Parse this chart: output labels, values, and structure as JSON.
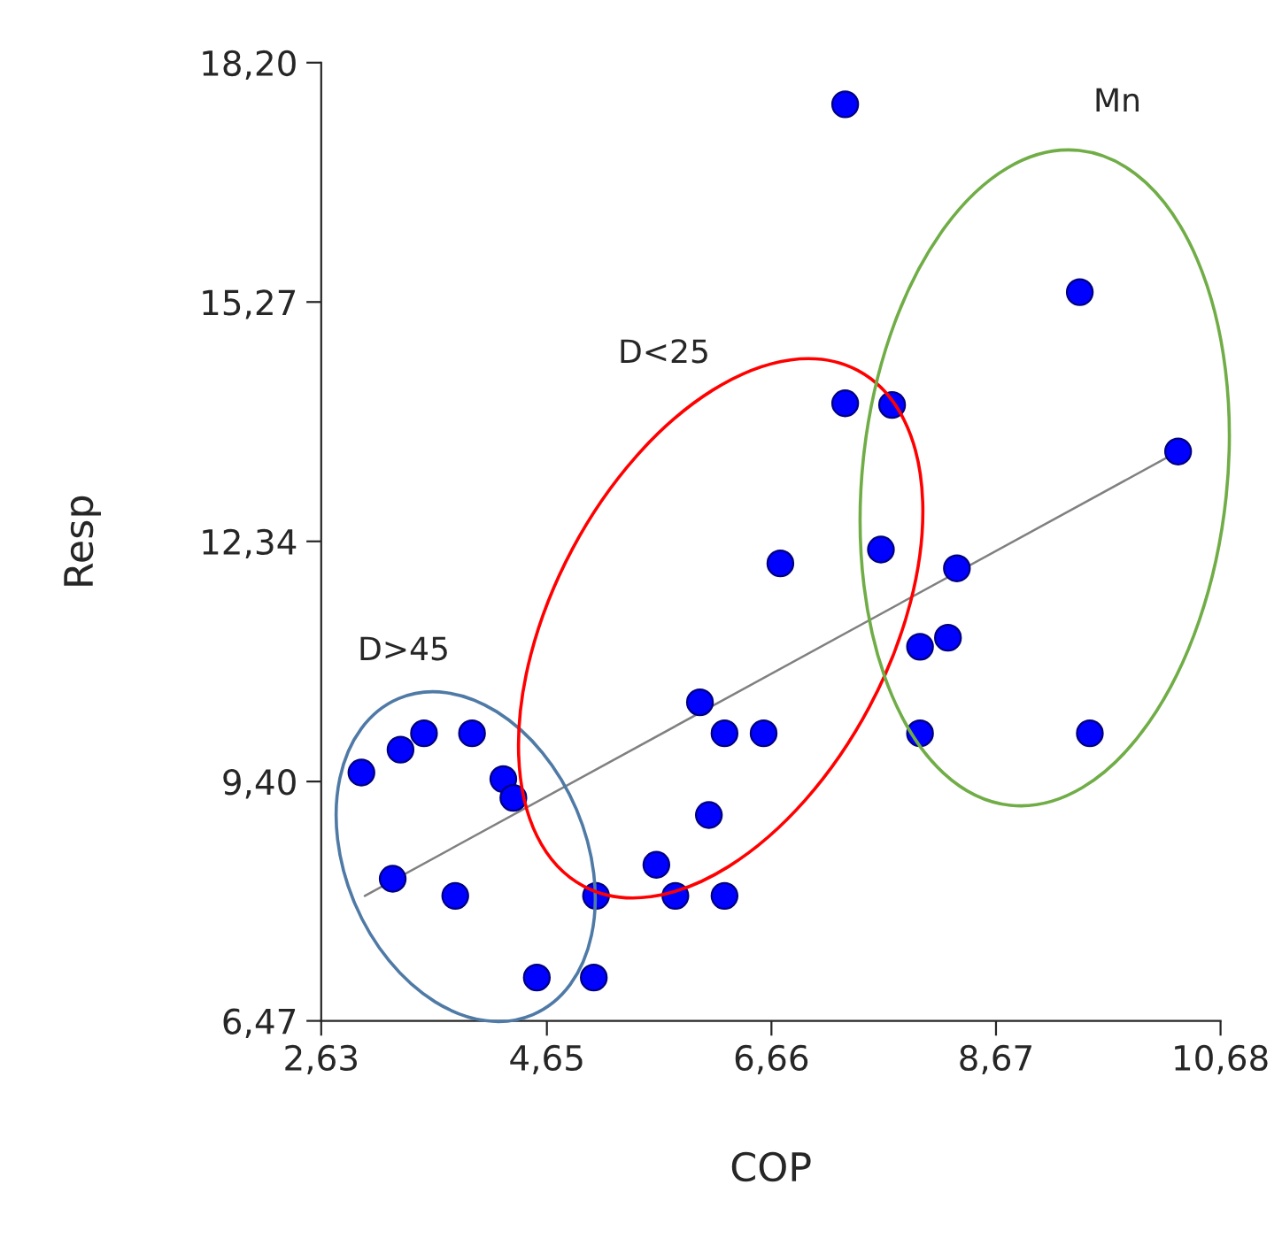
{
  "chart_data": {
    "type": "scatter",
    "xlabel": "COP",
    "ylabel": "Resp",
    "xlim": [
      2.63,
      10.68
    ],
    "ylim": [
      6.47,
      18.2
    ],
    "xticks": [
      {
        "value": 2.63,
        "label": "2,63"
      },
      {
        "value": 4.65,
        "label": "4,65"
      },
      {
        "value": 6.66,
        "label": "6,66"
      },
      {
        "value": 8.67,
        "label": "8,67"
      },
      {
        "value": 10.68,
        "label": "10,68"
      }
    ],
    "yticks": [
      {
        "value": 6.47,
        "label": "6,47"
      },
      {
        "value": 9.4,
        "label": "9,40"
      },
      {
        "value": 12.34,
        "label": "12,34"
      },
      {
        "value": 15.27,
        "label": "15,27"
      },
      {
        "value": 18.2,
        "label": "18,20"
      }
    ],
    "grid": false,
    "series": [
      {
        "marker": "circle",
        "color": "#0000ff",
        "x": [
          2.99,
          3.34,
          3.55,
          3.98,
          4.26,
          4.35,
          3.27,
          3.83,
          4.56,
          5.07,
          5.09,
          5.63,
          5.8,
          6.24,
          6.1,
          6.02,
          6.24,
          6.59,
          6.74,
          7.64,
          8.32,
          7.99,
          8.24,
          7.99,
          9.51,
          7.32,
          9.42,
          7.32,
          7.74,
          10.3
        ],
        "values": [
          9.51,
          9.79,
          9.99,
          9.99,
          9.43,
          9.2,
          8.21,
          8.0,
          7.0,
          7.0,
          8.0,
          8.38,
          8.0,
          8.0,
          8.99,
          10.37,
          9.99,
          9.99,
          12.07,
          12.24,
          12.01,
          11.05,
          11.16,
          9.99,
          9.99,
          17.69,
          15.39,
          14.03,
          14.01,
          13.44
        ]
      },
      {
        "type": "line",
        "color": "#808080",
        "x": [
          3.02,
          10.3
        ],
        "values": [
          8.0,
          13.44
        ]
      }
    ],
    "annotations": [
      "D>45",
      "D<25",
      "Mn"
    ]
  }
}
